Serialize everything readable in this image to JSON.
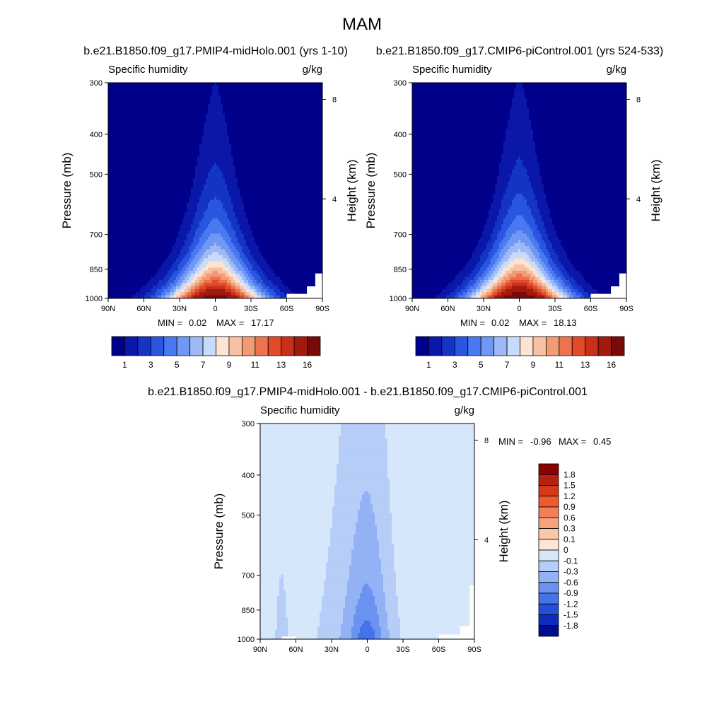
{
  "page_title": "MAM",
  "chart_data": [
    {
      "type": "contour",
      "run": "b.e21.B1850.f09_g17.PMIP4-midHolo.001 (yrs 1-10)",
      "variable": "Specific humidity",
      "units": "g/kg",
      "ylabel": "Pressure (mb)",
      "y2label": "Height (km)",
      "x_ticks": [
        "90N",
        "60N",
        "30N",
        "0",
        "30S",
        "60S",
        "90S"
      ],
      "y_ticks": [
        "300",
        "400",
        "500",
        "700",
        "850",
        "1000"
      ],
      "y2_ticks": [
        "8",
        "4"
      ],
      "stats": {
        "min_label": "MIN =",
        "min": "0.02",
        "max_label": "MAX =",
        "max": "17.17"
      },
      "colorbar_labels": [
        "1",
        "3",
        "5",
        "7",
        "9",
        "11",
        "13",
        "16"
      ],
      "colors": [
        "#00008b",
        "#0a17a8",
        "#1434c4",
        "#2a55e0",
        "#4a78f0",
        "#6f98f4",
        "#9dbaf7",
        "#c9dbfb",
        "#fbe4d4",
        "#f7c1a3",
        "#f29c75",
        "#ec7350",
        "#e24a2a",
        "#c9301a",
        "#a11a10",
        "#7a0a0a"
      ]
    },
    {
      "type": "contour",
      "run": "b.e21.B1850.f09_g17.CMIP6-piControl.001 (yrs 524-533)",
      "variable": "Specific humidity",
      "units": "g/kg",
      "ylabel": "Pressure (mb)",
      "y2label": "Height (km)",
      "x_ticks": [
        "90N",
        "60N",
        "30N",
        "0",
        "30S",
        "60S",
        "90S"
      ],
      "y_ticks": [
        "300",
        "400",
        "500",
        "700",
        "850",
        "1000"
      ],
      "y2_ticks": [
        "8",
        "4"
      ],
      "stats": {
        "min_label": "MIN =",
        "min": "0.02",
        "max_label": "MAX =",
        "max": "18.13"
      },
      "colorbar_labels": [
        "1",
        "3",
        "5",
        "7",
        "9",
        "11",
        "13",
        "16"
      ],
      "colors": [
        "#00008b",
        "#0a17a8",
        "#1434c4",
        "#2a55e0",
        "#4a78f0",
        "#6f98f4",
        "#9dbaf7",
        "#c9dbfb",
        "#fbe4d4",
        "#f7c1a3",
        "#f29c75",
        "#ec7350",
        "#e24a2a",
        "#c9301a",
        "#a11a10",
        "#7a0a0a"
      ]
    },
    {
      "type": "contour",
      "run": "b.e21.B1850.f09_g17.PMIP4-midHolo.001 - b.e21.B1850.f09_g17.CMIP6-piControl.001",
      "variable": "Specific humidity",
      "units": "g/kg",
      "ylabel": "Pressure (mb)",
      "y2label": "Height (km)",
      "x_ticks": [
        "90N",
        "60N",
        "30N",
        "0",
        "30S",
        "60S",
        "90S"
      ],
      "y_ticks": [
        "300",
        "400",
        "500",
        "700",
        "850",
        "1000"
      ],
      "y2_ticks": [
        "8",
        "4"
      ],
      "stats": {
        "min_label": "MIN =",
        "min": "-0.96",
        "max_label": "MAX =",
        "max": "0.45"
      },
      "colorbar_labels": [
        "1.8",
        "1.5",
        "1.2",
        "0.9",
        "0.6",
        "0.3",
        "0.1",
        "0",
        "-0.1",
        "-0.3",
        "-0.6",
        "-0.9",
        "-1.2",
        "-1.5",
        "-1.8"
      ],
      "colors": [
        "#8b0000",
        "#b52010",
        "#d8381a",
        "#f05a2e",
        "#f47e55",
        "#f7a27e",
        "#fbc6aa",
        "#fde6d6",
        "#d6e6fb",
        "#b6cdf8",
        "#93b2f5",
        "#6a92f1",
        "#4672ea",
        "#2250db",
        "#0d2cc0",
        "#000c90"
      ]
    }
  ]
}
